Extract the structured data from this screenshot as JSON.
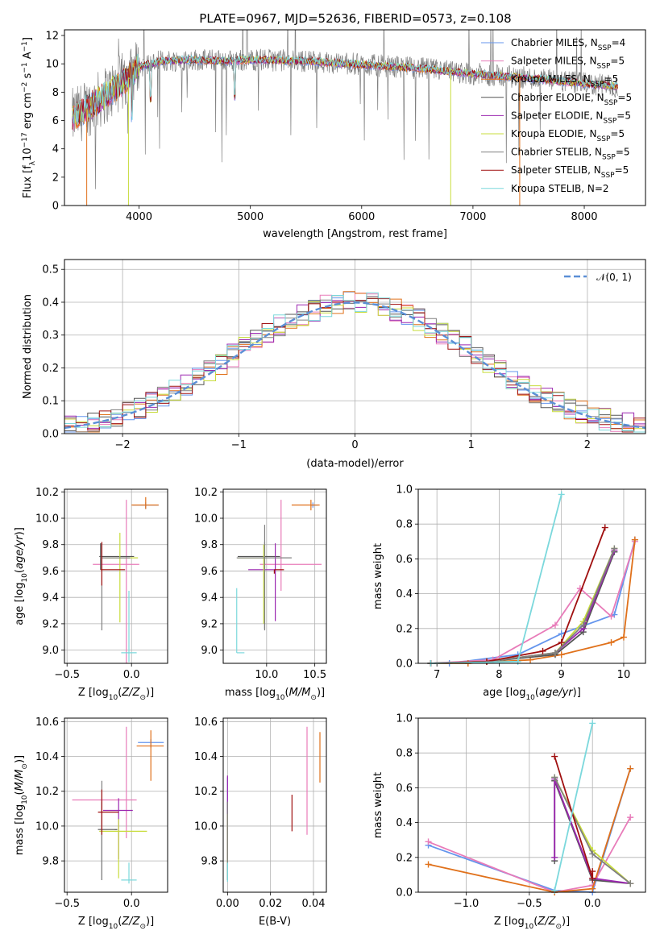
{
  "title": "PLATE=0967, MJD=52636, FIBERID=0573, z=0.108",
  "series_colors": [
    "#6495ed",
    "#e87bb9",
    "#e0711b",
    "#555555",
    "#9b27b0",
    "#c8dc3c",
    "#808080",
    "#a01010",
    "#7bd8dc"
  ],
  "chart_data": [
    {
      "type": "line",
      "panel": "spectrum",
      "xlabel": "wavelength [Angstrom, rest frame]",
      "ylabel": "Flux [f_λ 10^-17 erg cm^-2 s^-1 A^-1]",
      "xlim": [
        3330,
        8550
      ],
      "ylim": [
        0,
        12.4
      ],
      "xticks": [
        "4000",
        "5000",
        "6000",
        "7000",
        "8000"
      ],
      "yticks": [
        "0",
        "2",
        "4",
        "6",
        "8",
        "10",
        "12"
      ],
      "legend_position": "upper right",
      "legend": [
        {
          "name": "Chabrier MILES",
          "sub": "SSP",
          "n": "4"
        },
        {
          "name": "Salpeter MILES",
          "sub": "SSP",
          "n": "5"
        },
        {
          "name": "Kroupa MILES",
          "sub": "SSP",
          "n": "5"
        },
        {
          "name": "Chabrier ELODIE",
          "sub": "SSP",
          "n": "5"
        },
        {
          "name": "Salpeter ELODIE",
          "sub": "SSP",
          "n": "5"
        },
        {
          "name": "Kroupa ELODIE",
          "sub": "SSP",
          "n": "5"
        },
        {
          "name": "Chabrier STELIB",
          "sub": "SSP",
          "n": "5"
        },
        {
          "name": "Salpeter STELIB",
          "sub": "SSP",
          "n": "5"
        },
        {
          "name": "Kroupa STELIB",
          "sub": "",
          "n": "2"
        }
      ],
      "continuum": {
        "x": [
          3400,
          3600,
          3800,
          3900,
          4000,
          4200,
          4500,
          4800,
          5000,
          5500,
          6000,
          6500,
          7000,
          7500,
          8000,
          8300
        ],
        "y": [
          6.2,
          7.2,
          8.4,
          9.0,
          9.8,
          10.2,
          10.3,
          10.2,
          10.3,
          10.2,
          9.95,
          9.7,
          9.3,
          9.0,
          8.6,
          8.4
        ]
      }
    },
    {
      "type": "histogram",
      "panel": "residuals",
      "xlabel": "(data-model)/error",
      "ylabel": "Normed distribution",
      "xlim": [
        -2.5,
        2.5
      ],
      "ylim": [
        0,
        0.53
      ],
      "xticks": [
        "−2",
        "−1",
        "0",
        "1",
        "2"
      ],
      "yticks": [
        "0.0",
        "0.1",
        "0.2",
        "0.3",
        "0.4",
        "0.5"
      ],
      "bin_width": 0.1,
      "reference": {
        "name": "𝒩(0, 1)",
        "mean": 0,
        "sigma": 1
      }
    },
    {
      "type": "errorbar",
      "panel": "Z-age",
      "xlabel": "Z [log10(Z/Z⊙)]",
      "ylabel": "age [log10(age/yr)]",
      "xlim": [
        -0.52,
        0.28
      ],
      "ylim": [
        8.9,
        10.22
      ],
      "xticks": [
        "−0.5",
        "0.0"
      ],
      "yticks": [
        "9.0",
        "9.2",
        "9.4",
        "9.6",
        "9.8",
        "10.0",
        "10.2"
      ],
      "points": [
        {
          "x": 0.11,
          "xerr": [
            0.1,
            0.1
          ],
          "y": 10.1,
          "yerr": [
            0.03,
            0.02
          ]
        },
        {
          "x": -0.04,
          "xerr": [
            0.26,
            0.1
          ],
          "y": 9.65,
          "yerr": [
            0.75,
            0.49
          ]
        },
        {
          "x": 0.11,
          "xerr": [
            0.11,
            0.1
          ],
          "y": 10.1,
          "yerr": [
            0.03,
            0.06
          ]
        },
        {
          "x": -0.24,
          "xerr": [
            0.01,
            0.26
          ],
          "y": 9.71,
          "yerr": [
            0.1,
            0.1
          ]
        },
        {
          "x": -0.14,
          "xerr": [
            0.0,
            0.0
          ],
          "y": 9.61,
          "yerr": [
            0.0,
            0.0
          ]
        },
        {
          "x": -0.09,
          "xerr": [
            0.12,
            0.14
          ],
          "y": 9.7,
          "yerr": [
            0.49,
            0.19
          ]
        },
        {
          "x": -0.23,
          "xerr": [
            0.01,
            0.22
          ],
          "y": 9.7,
          "yerr": [
            0.55,
            0.11
          ]
        },
        {
          "x": -0.23,
          "xerr": [
            0.01,
            0.18
          ],
          "y": 9.61,
          "yerr": [
            0.12,
            0.21
          ]
        },
        {
          "x": -0.02,
          "xerr": [
            0.06,
            0.06
          ],
          "y": 8.98,
          "yerr": [
            0.07,
            0.47
          ]
        }
      ]
    },
    {
      "type": "errorbar",
      "panel": "mass-age",
      "xlabel": "mass [log10(M/M⊙)]",
      "ylabel": "",
      "xlim": [
        9.55,
        10.62
      ],
      "ylim": [
        8.9,
        10.22
      ],
      "xticks": [
        "10.0",
        "10.5"
      ],
      "yticks": [
        "9.0",
        "9.2",
        "9.4",
        "9.6",
        "9.8",
        "10.0",
        "10.2"
      ],
      "points": [
        {
          "x": 10.48,
          "xerr": [
            0.02,
            0.05
          ],
          "y": 10.1,
          "yerr": [
            0.02,
            0.02
          ]
        },
        {
          "x": 10.15,
          "xerr": [
            0.22,
            0.42
          ],
          "y": 9.65,
          "yerr": [
            0.2,
            0.49
          ]
        },
        {
          "x": 10.46,
          "xerr": [
            0.2,
            0.09
          ],
          "y": 10.1,
          "yerr": [
            0.04,
            0.04
          ]
        },
        {
          "x": 9.98,
          "xerr": [
            0.28,
            0.16
          ],
          "y": 9.71,
          "yerr": [
            0.55,
            0.11
          ]
        },
        {
          "x": 10.09,
          "xerr": [
            0.28,
            0.0
          ],
          "y": 9.61,
          "yerr": [
            0.39,
            0.2
          ]
        },
        {
          "x": 9.97,
          "xerr": [
            0.27,
            0.0
          ],
          "y": 9.7,
          "yerr": [
            0.5,
            0.1
          ]
        },
        {
          "x": 9.98,
          "xerr": [
            0.29,
            0.28
          ],
          "y": 9.7,
          "yerr": [
            0.55,
            0.25
          ]
        },
        {
          "x": 10.08,
          "xerr": [
            0.0,
            0.1
          ],
          "y": 9.61,
          "yerr": [
            0.03,
            0.0
          ]
        },
        {
          "x": 9.69,
          "xerr": [
            0.0,
            0.08
          ],
          "y": 8.98,
          "yerr": [
            0.0,
            0.49
          ]
        }
      ]
    },
    {
      "type": "line",
      "panel": "age-weight",
      "xlabel": "age [log10(age/yr)]",
      "ylabel": "mass weight",
      "xlim": [
        6.7,
        10.35
      ],
      "ylim": [
        0,
        1.0
      ],
      "xticks": [
        "7",
        "8",
        "9",
        "10"
      ],
      "yticks": [
        "0.0",
        "0.2",
        "0.4",
        "0.6",
        "0.8",
        "1.0"
      ],
      "grid": true,
      "series": [
        {
          "x": [
            6.9,
            7.2,
            8.3,
            9.0,
            9.85,
            10.18
          ],
          "y": [
            0.0,
            0.0,
            0.05,
            0.17,
            0.28,
            0.71
          ]
        },
        {
          "x": [
            6.9,
            7.9,
            8.9,
            9.3,
            9.8,
            10.18
          ],
          "y": [
            0.0,
            0.02,
            0.22,
            0.43,
            0.27,
            0.7
          ]
        },
        {
          "x": [
            6.9,
            7.5,
            8.5,
            9.0,
            9.8,
            10.0,
            10.18
          ],
          "y": [
            0.0,
            0.0,
            0.02,
            0.05,
            0.12,
            0.15,
            0.71
          ]
        },
        {
          "x": [
            6.9,
            7.8,
            8.9,
            9.35,
            9.85
          ],
          "y": [
            0.0,
            0.01,
            0.05,
            0.18,
            0.64
          ]
        },
        {
          "x": [
            6.9,
            7.8,
            8.9,
            9.35,
            9.85
          ],
          "y": [
            0.0,
            0.01,
            0.06,
            0.2,
            0.65
          ]
        },
        {
          "x": [
            6.9,
            7.8,
            8.9,
            9.35,
            9.85
          ],
          "y": [
            0.0,
            0.01,
            0.06,
            0.24,
            0.66
          ]
        },
        {
          "x": [
            6.9,
            7.8,
            8.9,
            9.35,
            9.85
          ],
          "y": [
            0.0,
            0.01,
            0.06,
            0.22,
            0.66
          ]
        },
        {
          "x": [
            6.9,
            7.8,
            8.7,
            9.0,
            9.7
          ],
          "y": [
            0.0,
            0.01,
            0.07,
            0.12,
            0.78
          ]
        },
        {
          "x": [
            6.9,
            8.3,
            9.0
          ],
          "y": [
            0.0,
            0.01,
            0.97
          ]
        }
      ]
    },
    {
      "type": "errorbar",
      "panel": "Z-mass",
      "xlabel": "Z [log10(Z/Z⊙)]",
      "ylabel": "mass [log10(M/M⊙)]",
      "xlim": [
        -0.52,
        0.28
      ],
      "ylim": [
        9.62,
        10.62
      ],
      "xticks": [
        "−0.5",
        "0.0"
      ],
      "yticks": [
        "9.8",
        "10.0",
        "10.2",
        "10.4",
        "10.6"
      ],
      "points": [
        {
          "x": 0.15,
          "xerr": [
            0.1,
            0.1
          ],
          "y": 10.48,
          "yerr": [
            0.03,
            0.02
          ]
        },
        {
          "x": -0.04,
          "xerr": [
            0.42,
            0.08
          ],
          "y": 10.15,
          "yerr": [
            0.22,
            0.42
          ]
        },
        {
          "x": 0.15,
          "xerr": [
            0.11,
            0.1
          ],
          "y": 10.46,
          "yerr": [
            0.2,
            0.09
          ]
        },
        {
          "x": -0.23,
          "xerr": [
            0.03,
            0.12
          ],
          "y": 9.98,
          "yerr": [
            0.29,
            0.16
          ]
        },
        {
          "x": -0.1,
          "xerr": [
            0.12,
            0.11
          ],
          "y": 10.09,
          "yerr": [
            0.28,
            0.07
          ]
        },
        {
          "x": -0.1,
          "xerr": [
            0.15,
            0.22
          ],
          "y": 9.97,
          "yerr": [
            0.27,
            0.07
          ]
        },
        {
          "x": -0.23,
          "xerr": [
            0.03,
            0.1
          ],
          "y": 9.98,
          "yerr": [
            0.29,
            0.28
          ]
        },
        {
          "x": -0.23,
          "xerr": [
            0.03,
            0.13
          ],
          "y": 10.08,
          "yerr": [
            0.13,
            0.13
          ]
        },
        {
          "x": -0.02,
          "xerr": [
            0.06,
            0.06
          ],
          "y": 9.69,
          "yerr": [
            0.02,
            0.1
          ]
        }
      ]
    },
    {
      "type": "errorbar",
      "panel": "EBV-mass",
      "xlabel": "E(B-V)",
      "ylabel": "",
      "xlim": [
        -0.002,
        0.046
      ],
      "ylim": [
        9.62,
        10.62
      ],
      "xticks": [
        "0.00",
        "0.02",
        "0.04"
      ],
      "yticks": [
        "9.8",
        "10.0",
        "10.2",
        "10.4",
        "10.6"
      ],
      "points": [
        {
          "x": 0.0,
          "y": 10.0,
          "yerr": [
            0.3,
            0.28
          ]
        },
        {
          "x": 0.037,
          "y": 10.2,
          "yerr": [
            0.25,
            0.37
          ]
        },
        {
          "x": 0.043,
          "y": 10.4,
          "yerr": [
            0.15,
            0.14
          ]
        },
        {
          "x": 0.0,
          "y": 9.98,
          "yerr": [
            0.29,
            0.16
          ]
        },
        {
          "x": 0.0,
          "y": 10.09,
          "yerr": [
            0.28,
            0.2
          ]
        },
        {
          "x": 0.0,
          "y": 9.97,
          "yerr": [
            0.27,
            0.1
          ]
        },
        {
          "x": 0.0,
          "y": 9.98,
          "yerr": [
            0.29,
            0.16
          ]
        },
        {
          "x": 0.03,
          "y": 10.08,
          "yerr": [
            0.11,
            0.1
          ]
        },
        {
          "x": 0.0,
          "y": 9.74,
          "yerr": [
            0.06,
            0.05
          ]
        }
      ]
    },
    {
      "type": "line",
      "panel": "Z-weight",
      "xlabel": "Z [log10(Z/Z⊙)]",
      "ylabel": "mass weight",
      "xlim": [
        -1.38,
        0.42
      ],
      "ylim": [
        0,
        1.0
      ],
      "xticks": [
        "−1.0",
        "−0.5",
        "0.0"
      ],
      "yticks": [
        "0.0",
        "0.2",
        "0.4",
        "0.6",
        "0.8",
        "1.0"
      ],
      "grid": true,
      "series": [
        {
          "x": [
            -1.3,
            -0.3,
            0.0,
            0.3
          ],
          "y": [
            0.27,
            0.01,
            0.0,
            0.71
          ]
        },
        {
          "x": [
            -1.3,
            -0.3,
            0.0,
            0.3
          ],
          "y": [
            0.29,
            0.0,
            0.04,
            0.43
          ]
        },
        {
          "x": [
            -1.3,
            -0.3,
            0.0,
            0.3
          ],
          "y": [
            0.16,
            0.0,
            0.02,
            0.71
          ]
        },
        {
          "x": [
            -0.3,
            -0.3,
            0.0,
            0.3
          ],
          "y": [
            0.18,
            0.64,
            0.07,
            0.05
          ]
        },
        {
          "x": [
            -0.3,
            -0.3,
            0.0,
            0.3
          ],
          "y": [
            0.2,
            0.65,
            0.08,
            0.05
          ]
        },
        {
          "x": [
            -0.3,
            0.0,
            0.3
          ],
          "y": [
            0.66,
            0.24,
            0.05
          ]
        },
        {
          "x": [
            -0.3,
            0.0,
            0.3
          ],
          "y": [
            0.66,
            0.22,
            0.05
          ]
        },
        {
          "x": [
            -0.3,
            0.0,
            0.0
          ],
          "y": [
            0.78,
            0.08,
            0.12
          ]
        },
        {
          "x": [
            -0.3,
            0.0
          ],
          "y": [
            0.01,
            0.97
          ]
        }
      ]
    }
  ]
}
